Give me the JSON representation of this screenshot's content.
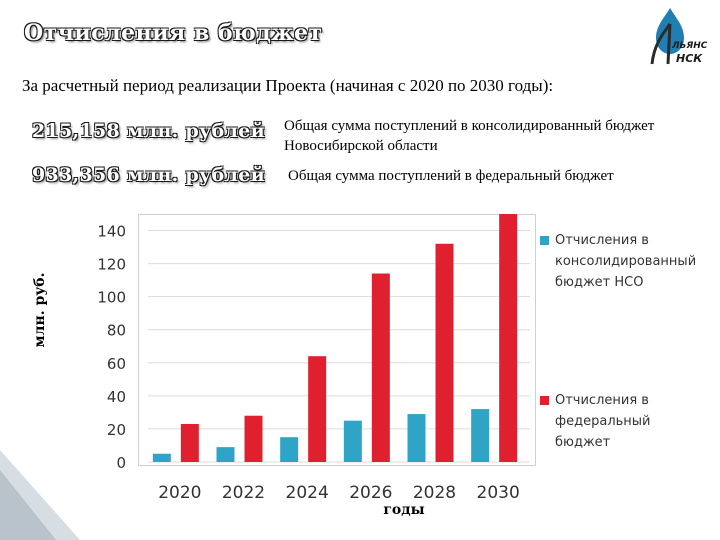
{
  "slide": {
    "title": "Отчисления в бюджет",
    "subtitle": "За расчетный период реализации Проекта (начиная с 2020 по 2030 годы):",
    "amount_regional": "215,158 млн. рублей",
    "desc_regional": "Общая сумма поступлений в консолидированный бюджет Новосибирской области",
    "amount_federal": "933,356 млн. рублей",
    "desc_federal": "Общая сумма поступлений в федеральный бюджет",
    "logo_text_top": "ЛЬЯНС",
    "logo_text_bottom": "НСК"
  },
  "chart_data": {
    "type": "bar",
    "categories": [
      "2020",
      "2022",
      "2024",
      "2026",
      "2028",
      "2030"
    ],
    "series": [
      {
        "name": "Отчисления в консолидированный бюджет НСО",
        "color": "#2fa4c6",
        "values": [
          5,
          9,
          15,
          25,
          29,
          32
        ]
      },
      {
        "name": "Отчисления в федеральный бюджет",
        "color": "#e0202e",
        "values": [
          23,
          28,
          64,
          114,
          132,
          150
        ]
      }
    ],
    "yticks": [
      0,
      20,
      40,
      60,
      80,
      100,
      120,
      140
    ],
    "ylim": [
      0,
      150
    ],
    "ylabel": "млн. руб.",
    "xlabel": "годы",
    "grid": true,
    "legend": "right",
    "legend_lines": [
      [
        "Отчисления в",
        "консолидированный",
        "бюджет НСО"
      ],
      [
        "Отчисления в",
        "федеральный",
        "бюджет"
      ]
    ]
  }
}
